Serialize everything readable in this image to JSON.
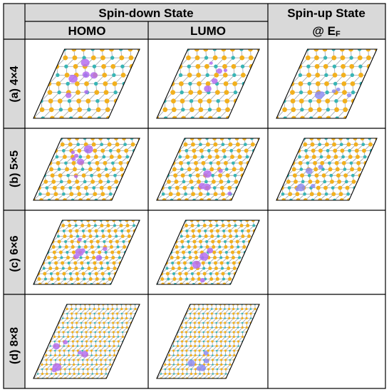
{
  "header": {
    "spin_down": "Spin-down State",
    "homo": "HOMO",
    "lumo": "LUMO",
    "spin_up_line1": "Spin-up State",
    "spin_up_line2": "@ E",
    "spin_up_sub": "F"
  },
  "rows": [
    {
      "label": "(a)  4×4",
      "n": 4,
      "panels": [
        "homo",
        "lumo",
        "spinup"
      ]
    },
    {
      "label": "(b)  5×5",
      "n": 5,
      "panels": [
        "homo",
        "lumo",
        "spinup"
      ]
    },
    {
      "label": "(c)  6×6",
      "n": 6,
      "panels": [
        "homo",
        "lumo"
      ]
    },
    {
      "label": "(d)  8×8",
      "n": 8,
      "panels": [
        "homo",
        "lumo"
      ]
    }
  ],
  "colors": {
    "grid": "#000000",
    "header_bg": "#d9d9d9",
    "atom_s": "#f2b01e",
    "atom_mo": "#39b5b5",
    "bond": "#9aa0a6",
    "orbital_purple": "#b46ef0",
    "orbital_blue": "#8e8cf2"
  }
}
